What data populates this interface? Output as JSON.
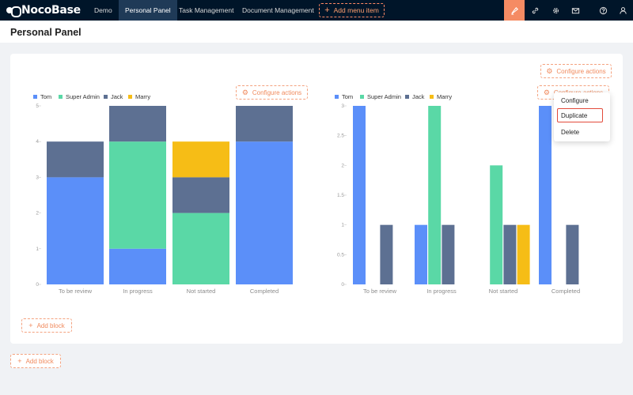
{
  "app": {
    "logo_text": "NocoBase"
  },
  "nav": {
    "items": [
      {
        "label": "Demo",
        "active": false
      },
      {
        "label": "Personal Panel",
        "active": true
      },
      {
        "label": "Task Management",
        "active": false
      },
      {
        "label": "Document Management",
        "active": false
      }
    ],
    "add_menu_label": "Add menu item",
    "toolbar_icons": [
      "highlighter-icon",
      "link-icon",
      "gear-icon",
      "mail-icon",
      "help-icon",
      "user-icon"
    ]
  },
  "page": {
    "title": "Personal Panel"
  },
  "actions": {
    "configure_label": "Configure actions",
    "add_block_label": "Add block"
  },
  "dropdown": {
    "items": [
      "Configure",
      "Duplicate",
      "Delete"
    ]
  },
  "colors": {
    "Tom": "#5b8ff9",
    "Super Admin": "#5ad8a6",
    "Jack": "#5d7092",
    "Marry": "#f6bd16",
    "accent": "#f58b63"
  },
  "chart_data": [
    {
      "type": "bar",
      "stacked": true,
      "categories": [
        "To be review",
        "In progress",
        "Not started",
        "Completed"
      ],
      "series": [
        {
          "name": "Tom",
          "values": [
            3,
            1,
            0,
            4
          ]
        },
        {
          "name": "Super Admin",
          "values": [
            0,
            3,
            2,
            0
          ]
        },
        {
          "name": "Jack",
          "values": [
            1,
            1,
            1,
            1
          ]
        },
        {
          "name": "Marry",
          "values": [
            0,
            0,
            1,
            0
          ]
        }
      ],
      "ylim": [
        0,
        5
      ],
      "yticks": [
        0,
        1,
        2,
        3,
        4,
        5
      ],
      "legend_position": "top-left",
      "grid": false
    },
    {
      "type": "bar",
      "stacked": false,
      "categories": [
        "To be review",
        "In progress",
        "Not started",
        "Completed"
      ],
      "series": [
        {
          "name": "Tom",
          "values": [
            3,
            1,
            0,
            3
          ]
        },
        {
          "name": "Super Admin",
          "values": [
            0,
            3,
            2,
            0
          ]
        },
        {
          "name": "Jack",
          "values": [
            1,
            1,
            1,
            1
          ]
        },
        {
          "name": "Marry",
          "values": [
            0,
            0,
            1,
            0
          ]
        }
      ],
      "ylim": [
        0,
        3
      ],
      "yticks": [
        0,
        0.5,
        1,
        1.5,
        2,
        2.5,
        3
      ],
      "legend_position": "top-left",
      "grid": false
    }
  ]
}
